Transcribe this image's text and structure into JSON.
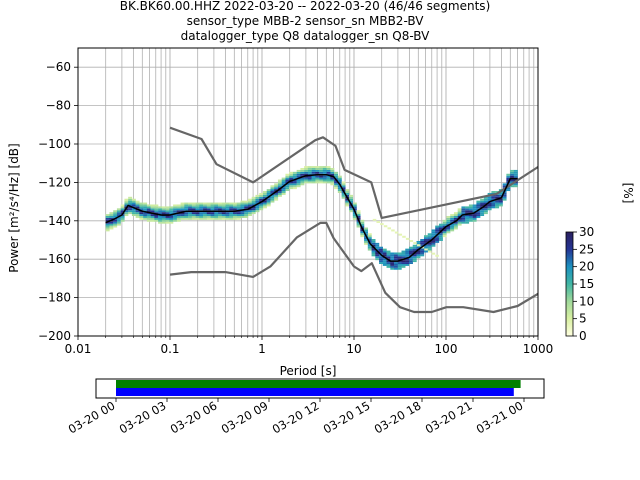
{
  "title": {
    "line1": "BK.BK60.00.HHZ   2022-03-20 -- 2022-03-20  (46/46 segments)",
    "line2": "sensor_type MBB-2 sensor_sn MBB2-BV",
    "line3": "datalogger_type Q8 datalogger_sn Q8-BV"
  },
  "chart_data": [
    {
      "type": "heatmap",
      "subtype": "ppsd",
      "xlabel": "Period [s]",
      "ylabel": "Power [m²/s⁴/Hz] [dB]",
      "xscale": "log",
      "xlim": [
        0.01,
        1000
      ],
      "ylim": [
        -200,
        -50
      ],
      "xticks": [
        0.01,
        0.1,
        1,
        10,
        100,
        1000
      ],
      "xtick_labels": [
        "0.01",
        "0.1",
        "1",
        "10",
        "100",
        "1000"
      ],
      "yticks": [
        -200,
        -180,
        -160,
        -140,
        -120,
        -100,
        -80,
        -60
      ],
      "grid": true,
      "colorbar": {
        "label": "[%]",
        "range": [
          0,
          30
        ],
        "ticks": [
          0,
          5,
          10,
          15,
          20,
          25,
          30
        ],
        "colormap": [
          "#ffffe0",
          "#d9f0a3",
          "#a1d99b",
          "#41b6a4",
          "#1d91c0",
          "#253494",
          "#2a1f5e"
        ]
      },
      "series": [
        {
          "name": "NHNM",
          "color": "#666666",
          "x": [
            0.1,
            0.22,
            0.32,
            0.8,
            3.8,
            4.6,
            6.3,
            7.9,
            15.4,
            20,
            354.8,
            1000
          ],
          "y": [
            -91.5,
            -97.4,
            -110.5,
            -120,
            -98,
            -96.5,
            -101,
            -113.5,
            -120,
            -138.5,
            -126,
            -112
          ]
        },
        {
          "name": "NLNM",
          "color": "#666666",
          "x": [
            0.1,
            0.17,
            0.4,
            0.8,
            1.24,
            2.4,
            4.3,
            5,
            6,
            10,
            12,
            15.6,
            21.9,
            31.6,
            45,
            70,
            101,
            154,
            328,
            600,
            1000
          ],
          "y": [
            -168,
            -166.7,
            -166.7,
            -169.2,
            -163.7,
            -148.6,
            -141.1,
            -141.1,
            -149,
            -163.8,
            -166.2,
            -162.1,
            -177.5,
            -185,
            -187.5,
            -187.5,
            -185,
            -185,
            -187.5,
            -184.4,
            -178
          ]
        },
        {
          "name": "mode",
          "color": "#000000",
          "x": [
            0.02,
            0.025,
            0.03,
            0.035,
            0.05,
            0.08,
            0.1,
            0.15,
            0.2,
            0.3,
            0.5,
            0.7,
            1,
            1.5,
            2,
            3,
            4,
            5,
            6,
            7,
            8,
            10,
            12,
            15,
            20,
            25,
            30,
            40,
            50,
            70,
            100,
            130,
            150,
            200,
            250,
            300,
            400,
            500,
            600
          ],
          "y": [
            -141,
            -139,
            -137,
            -132,
            -135,
            -137,
            -137,
            -135,
            -135,
            -135,
            -135,
            -134,
            -130,
            -124,
            -119.5,
            -116.5,
            -116,
            -116,
            -117,
            -121,
            -126,
            -134,
            -143,
            -152,
            -158,
            -161,
            -161,
            -159,
            -155,
            -150,
            -143,
            -140,
            -137,
            -136,
            -133,
            -130,
            -128,
            -118,
            -118
          ]
        }
      ]
    },
    {
      "type": "timeline",
      "x": [
        "2022-03-20 00:00",
        "2022-03-21 00:00"
      ],
      "xtick_labels": [
        "03-20 00",
        "03-20 03",
        "03-20 06",
        "03-20 09",
        "03-20 12",
        "03-20 15",
        "03-20 18",
        "03-20 21",
        "03-21 00"
      ],
      "bars": [
        {
          "color": "#008000",
          "start_hour": 0,
          "end_hour": 23.8
        },
        {
          "color": "#0000ff",
          "start_hour": 0,
          "end_hour": 23.4
        }
      ]
    }
  ]
}
